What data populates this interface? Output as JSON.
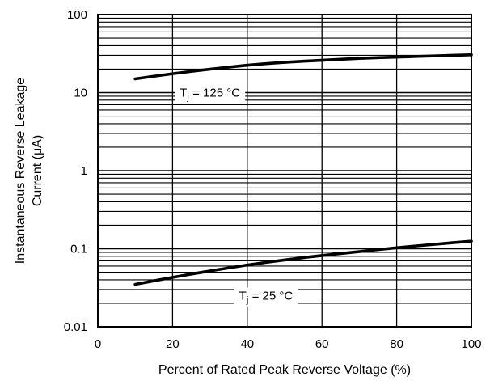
{
  "chart_data": {
    "type": "line",
    "xlabel": "Percent of Rated Peak Reverse Voltage (%)",
    "ylabel_line1": "Instantaneous Reverse Leakage",
    "ylabel_line2": "Current (μA)",
    "x_scale": "linear",
    "y_scale": "log",
    "xlim": [
      0,
      100
    ],
    "ylim": [
      0.01,
      100
    ],
    "x_ticks": [
      0,
      20,
      40,
      60,
      80,
      100
    ],
    "x_tick_labels": [
      "0",
      "20",
      "40",
      "60",
      "80",
      "100"
    ],
    "y_ticks": [
      0.01,
      0.1,
      1,
      10,
      100
    ],
    "y_tick_labels": [
      "0.01",
      "0.1",
      "1",
      "10",
      "100"
    ],
    "grid": true,
    "series": [
      {
        "name": "Tj = 125 °C",
        "label_prefix": "T",
        "label_sub": "j",
        "label_suffix": " = 125 °C",
        "label_at": [
          30,
          10
        ],
        "x": [
          10,
          20,
          30,
          40,
          50,
          60,
          70,
          80,
          90,
          100
        ],
        "values": [
          15,
          17.5,
          20,
          22.5,
          24.5,
          26,
          27.5,
          28.5,
          29.5,
          30.5
        ]
      },
      {
        "name": "Tj = 25 °C",
        "label_prefix": "T",
        "label_sub": "j",
        "label_suffix": " = 25 °C",
        "label_at": [
          45,
          0.025
        ],
        "x": [
          10,
          20,
          30,
          40,
          50,
          60,
          70,
          80,
          90,
          100
        ],
        "values": [
          0.035,
          0.043,
          0.052,
          0.062,
          0.072,
          0.082,
          0.092,
          0.103,
          0.114,
          0.125
        ]
      }
    ]
  }
}
